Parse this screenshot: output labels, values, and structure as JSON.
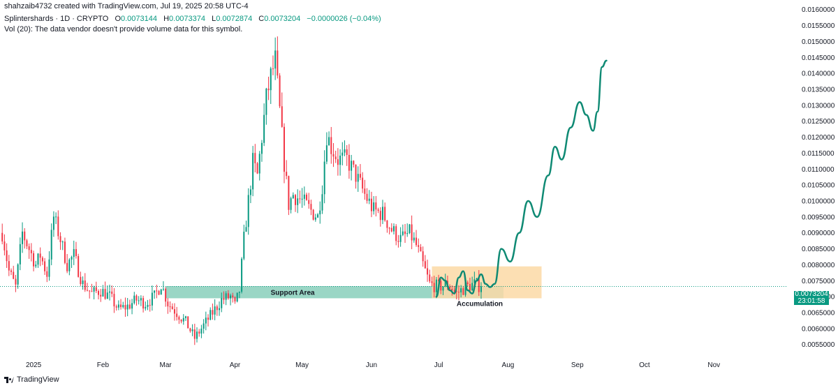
{
  "header": {
    "credit": "shahzaib4732 created with TradingView.com, Jul 19, 2025 20:58 UTC-4",
    "symbol": "Splintershards · 1D · CRYPTO",
    "o_label": "O",
    "o_val": "0.0073144",
    "h_label": "H",
    "h_val": "0.0073374",
    "l_label": "L",
    "l_val": "0.0072874",
    "c_label": "C",
    "c_val": "0.0073204",
    "change": "−0.0000026 (−0.04%)",
    "volume_note": "Vol (20): The data vendor doesn't provide volume data for this symbol."
  },
  "price_tag": {
    "price": "0.0073204",
    "countdown": "23:01:58"
  },
  "branding": {
    "logo_text": "TradingView"
  },
  "colors": {
    "up": "#089981",
    "down": "#f23645",
    "support_zone": "#8fd2bf",
    "accumulation_zone": "#fbd9a6",
    "projection": "#0f8a74",
    "last_price_line": "#089981"
  },
  "chart_data": {
    "type": "candlestick",
    "title": "",
    "xlabel": "",
    "ylabel": "",
    "ylim": [
      0.0051,
      0.0163
    ],
    "y_ticks": [
      "0.0055000",
      "0.0060000",
      "0.0065000",
      "0.0070000",
      "0.0075000",
      "0.0080000",
      "0.0085000",
      "0.0090000",
      "0.0095000",
      "0.0100000",
      "0.0105000",
      "0.0110000",
      "0.0115000",
      "0.0120000",
      "0.0125000",
      "0.0130000",
      "0.0135000",
      "0.0140000",
      "0.0145000",
      "0.0150000",
      "0.0155000",
      "0.0160000"
    ],
    "x_ticks": [
      {
        "label": "2025",
        "day": 0
      },
      {
        "label": "Feb",
        "day": 31
      },
      {
        "label": "Mar",
        "day": 59
      },
      {
        "label": "Apr",
        "day": 90
      },
      {
        "label": "May",
        "day": 120
      },
      {
        "label": "Jun",
        "day": 151
      },
      {
        "label": "Jul",
        "day": 181
      },
      {
        "label": "Aug",
        "day": 212
      },
      {
        "label": "Sep",
        "day": 243
      },
      {
        "label": "Oct",
        "day": 273
      },
      {
        "label": "Nov",
        "day": 304
      }
    ],
    "x_day_range": [
      -15,
      337
    ],
    "last_price": 0.0073204,
    "anchors": [
      {
        "day": -14,
        "close": 0.009
      },
      {
        "day": -11,
        "close": 0.0078
      },
      {
        "day": -8,
        "close": 0.0073
      },
      {
        "day": -5,
        "close": 0.009
      },
      {
        "day": -2,
        "close": 0.0085
      },
      {
        "day": 1,
        "close": 0.008
      },
      {
        "day": 3,
        "close": 0.0083
      },
      {
        "day": 6,
        "close": 0.0077
      },
      {
        "day": 9,
        "close": 0.0095
      },
      {
        "day": 12,
        "close": 0.0088
      },
      {
        "day": 15,
        "close": 0.008
      },
      {
        "day": 18,
        "close": 0.0083
      },
      {
        "day": 22,
        "close": 0.0074
      },
      {
        "day": 26,
        "close": 0.0071
      },
      {
        "day": 30,
        "close": 0.0072
      },
      {
        "day": 34,
        "close": 0.007
      },
      {
        "day": 38,
        "close": 0.0066
      },
      {
        "day": 42,
        "close": 0.0067
      },
      {
        "day": 46,
        "close": 0.0069
      },
      {
        "day": 50,
        "close": 0.0068
      },
      {
        "day": 54,
        "close": 0.007
      },
      {
        "day": 57,
        "close": 0.0074
      },
      {
        "day": 60,
        "close": 0.0068
      },
      {
        "day": 64,
        "close": 0.0065
      },
      {
        "day": 68,
        "close": 0.0062
      },
      {
        "day": 72,
        "close": 0.0057
      },
      {
        "day": 76,
        "close": 0.0061
      },
      {
        "day": 80,
        "close": 0.0065
      },
      {
        "day": 84,
        "close": 0.0069
      },
      {
        "day": 88,
        "close": 0.007
      },
      {
        "day": 90,
        "close": 0.0067
      },
      {
        "day": 92,
        "close": 0.0072
      },
      {
        "day": 94,
        "close": 0.0088
      },
      {
        "day": 96,
        "close": 0.01
      },
      {
        "day": 98,
        "close": 0.0112
      },
      {
        "day": 100,
        "close": 0.0108
      },
      {
        "day": 102,
        "close": 0.012
      },
      {
        "day": 104,
        "close": 0.0132
      },
      {
        "day": 106,
        "close": 0.0139
      },
      {
        "day": 108,
        "close": 0.0144
      },
      {
        "day": 110,
        "close": 0.0128
      },
      {
        "day": 112,
        "close": 0.0112
      },
      {
        "day": 114,
        "close": 0.0099
      },
      {
        "day": 116,
        "close": 0.0102
      },
      {
        "day": 120,
        "close": 0.01
      },
      {
        "day": 124,
        "close": 0.0097
      },
      {
        "day": 127,
        "close": 0.0095
      },
      {
        "day": 129,
        "close": 0.0105
      },
      {
        "day": 131,
        "close": 0.0121
      },
      {
        "day": 133,
        "close": 0.0117
      },
      {
        "day": 136,
        "close": 0.0113
      },
      {
        "day": 140,
        "close": 0.0113
      },
      {
        "day": 144,
        "close": 0.0108
      },
      {
        "day": 148,
        "close": 0.0102
      },
      {
        "day": 152,
        "close": 0.0097
      },
      {
        "day": 156,
        "close": 0.0096
      },
      {
        "day": 160,
        "close": 0.0091
      },
      {
        "day": 164,
        "close": 0.0088
      },
      {
        "day": 168,
        "close": 0.009
      },
      {
        "day": 171,
        "close": 0.0086
      },
      {
        "day": 174,
        "close": 0.008
      },
      {
        "day": 177,
        "close": 0.0074
      },
      {
        "day": 181,
        "close": 0.0073
      },
      {
        "day": 185,
        "close": 0.0074
      },
      {
        "day": 189,
        "close": 0.0071
      },
      {
        "day": 193,
        "close": 0.0073
      },
      {
        "day": 197,
        "close": 0.0074
      },
      {
        "day": 200,
        "close": 0.00732
      }
    ],
    "annotations": [
      {
        "type": "zone",
        "label": "Support Area",
        "day_from": 59,
        "day_to": 210,
        "y_from": 0.00695,
        "y_to": 0.00733
      },
      {
        "type": "zone",
        "label": "Accumulation",
        "day_from": 178,
        "day_to": 227,
        "y_from": 0.00695,
        "y_to": 0.00795
      },
      {
        "type": "projection",
        "label": "",
        "points": [
          [
            180,
            0.007
          ],
          [
            182,
            0.0076
          ],
          [
            184,
            0.0075
          ],
          [
            186,
            0.0072
          ],
          [
            188,
            0.0071
          ],
          [
            190,
            0.0076
          ],
          [
            192,
            0.0078
          ],
          [
            194,
            0.0072
          ],
          [
            196,
            0.0071
          ],
          [
            198,
            0.0075
          ],
          [
            200,
            0.0077
          ],
          [
            202,
            0.0074
          ],
          [
            204,
            0.0073
          ],
          [
            206,
            0.0074
          ],
          [
            209,
            0.0085
          ],
          [
            213,
            0.0081
          ],
          [
            217,
            0.009
          ],
          [
            221,
            0.01
          ],
          [
            225,
            0.0095
          ],
          [
            230,
            0.0108
          ],
          [
            233,
            0.0117
          ],
          [
            236,
            0.0113
          ],
          [
            240,
            0.0123
          ],
          [
            244,
            0.0131
          ],
          [
            247,
            0.0127
          ],
          [
            250,
            0.0122
          ],
          [
            252,
            0.0128
          ],
          [
            254,
            0.0142
          ],
          [
            256,
            0.0144
          ]
        ]
      }
    ],
    "grid": false,
    "legend": "none"
  }
}
